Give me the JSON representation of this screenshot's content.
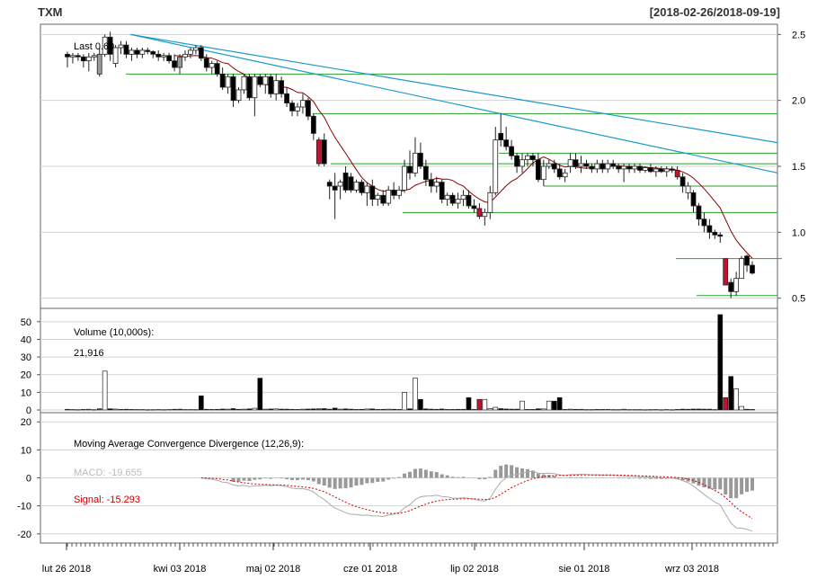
{
  "header": {
    "symbol": "TXM",
    "range": "[2018-02-26/2018-09-19]"
  },
  "colors": {
    "up": "#ffffff",
    "down": "#000000",
    "bigdown": "#c8102e",
    "gray": "#999999",
    "ma": "#8b0000",
    "trend": "#1a9bc9",
    "level": "#2ca02c",
    "grid": "#d3d3d3",
    "macd": "#aaaaaa",
    "signal": "#cc0000"
  },
  "chart_data": {
    "type": "candlestick",
    "x_axis": {
      "labels": [
        "lut 26 2018",
        "kwi 03 2018",
        "maj 02 2018",
        "cze 01 2018",
        "lip 02 2018",
        "sie 01 2018",
        "wrz 03 2018"
      ]
    },
    "price_panel": {
      "last_label": "Last 0.69",
      "ylim": [
        0.45,
        2.55
      ],
      "yticks": [
        "0.5",
        "1.0",
        "1.5",
        "2.0",
        "2.5"
      ],
      "horizontal_levels": [
        {
          "y": 2.2,
          "from": 140,
          "to": 865
        },
        {
          "y": 1.9,
          "from": 348,
          "to": 865
        },
        {
          "y": 1.6,
          "from": 555,
          "to": 865
        },
        {
          "y": 1.52,
          "from": 368,
          "to": 865
        },
        {
          "y": 1.35,
          "from": 605,
          "to": 865
        },
        {
          "y": 1.15,
          "from": 448,
          "to": 865
        },
        {
          "y": 0.8,
          "from": 752,
          "to": 870
        },
        {
          "y": 0.52,
          "from": 775,
          "to": 865
        }
      ],
      "trendlines": [
        {
          "from": {
            "x": 145,
            "y": 2.5
          },
          "to": {
            "x": 865,
            "y": 1.68
          }
        },
        {
          "from": {
            "x": 145,
            "y": 2.5
          },
          "to": {
            "x": 865,
            "y": 1.45
          }
        }
      ],
      "candles": [
        [
          2.35,
          2.37,
          2.25,
          2.33,
          0
        ],
        [
          2.33,
          2.36,
          2.28,
          2.34,
          0
        ],
        [
          2.34,
          2.36,
          2.3,
          2.33,
          0
        ],
        [
          2.33,
          2.35,
          2.25,
          2.3,
          0
        ],
        [
          2.3,
          2.36,
          2.22,
          2.33,
          0
        ],
        [
          2.33,
          2.36,
          2.3,
          2.34,
          0
        ],
        [
          2.2,
          2.4,
          2.18,
          2.35,
          2
        ],
        [
          2.35,
          2.5,
          2.33,
          2.48,
          0
        ],
        [
          2.48,
          2.52,
          2.3,
          2.35,
          0
        ],
        [
          2.28,
          2.42,
          2.25,
          2.4,
          1
        ],
        [
          2.4,
          2.45,
          2.35,
          2.42,
          0
        ],
        [
          2.42,
          2.45,
          2.32,
          2.35,
          0
        ],
        [
          2.35,
          2.4,
          2.3,
          2.38,
          0
        ],
        [
          2.38,
          2.4,
          2.32,
          2.35,
          0
        ],
        [
          2.35,
          2.4,
          2.32,
          2.38,
          0
        ],
        [
          2.38,
          2.4,
          2.35,
          2.37,
          0
        ],
        [
          2.37,
          2.38,
          2.32,
          2.35,
          0
        ],
        [
          2.35,
          2.38,
          2.3,
          2.33,
          0
        ],
        [
          2.33,
          2.36,
          2.3,
          2.34,
          0
        ],
        [
          2.34,
          2.36,
          2.28,
          2.3,
          0
        ],
        [
          2.3,
          2.35,
          2.22,
          2.25,
          0
        ],
        [
          2.25,
          2.35,
          2.2,
          2.33,
          2
        ],
        [
          2.33,
          2.38,
          2.3,
          2.35,
          0
        ],
        [
          2.35,
          2.4,
          2.32,
          2.38,
          0
        ],
        [
          2.38,
          2.42,
          2.35,
          2.4,
          0
        ],
        [
          2.4,
          2.42,
          2.3,
          2.32,
          0
        ],
        [
          2.32,
          2.35,
          2.22,
          2.25,
          0
        ],
        [
          2.25,
          2.3,
          2.2,
          2.28,
          0
        ],
        [
          2.28,
          2.3,
          2.18,
          2.2,
          0
        ],
        [
          2.2,
          2.25,
          2.08,
          2.1,
          0
        ],
        [
          2.1,
          2.2,
          2.05,
          2.18,
          1
        ],
        [
          2.18,
          2.2,
          1.95,
          2.0,
          0
        ],
        [
          2.0,
          2.1,
          1.98,
          2.08,
          1
        ],
        [
          2.08,
          2.2,
          2.05,
          2.18,
          0
        ],
        [
          2.18,
          2.2,
          2.0,
          2.02,
          0
        ],
        [
          2.02,
          2.2,
          1.88,
          2.18,
          0
        ],
        [
          2.18,
          2.2,
          2.1,
          2.12,
          0
        ],
        [
          2.12,
          2.2,
          2.05,
          2.18,
          0
        ],
        [
          2.18,
          2.2,
          2.02,
          2.05,
          0
        ],
        [
          2.05,
          2.2,
          2.0,
          2.15,
          0
        ],
        [
          2.15,
          2.18,
          2.02,
          2.05,
          0
        ],
        [
          2.05,
          2.1,
          1.95,
          1.98,
          0
        ],
        [
          1.98,
          2.0,
          1.88,
          1.92,
          0
        ],
        [
          1.92,
          1.98,
          1.88,
          1.95,
          1
        ],
        [
          1.95,
          2.05,
          1.9,
          2.0,
          0
        ],
        [
          2.0,
          2.02,
          1.85,
          1.88,
          0
        ],
        [
          1.88,
          1.9,
          1.7,
          1.75,
          0
        ],
        [
          1.7,
          1.72,
          1.5,
          1.52,
          2
        ],
        [
          1.7,
          1.75,
          1.5,
          1.52,
          0
        ],
        [
          1.38,
          1.4,
          1.25,
          1.35,
          0
        ],
        [
          1.35,
          1.45,
          1.1,
          1.32,
          0
        ],
        [
          1.35,
          1.4,
          1.25,
          1.38,
          1
        ],
        [
          1.45,
          1.5,
          1.3,
          1.32,
          0
        ],
        [
          1.42,
          1.45,
          1.3,
          1.32,
          0
        ],
        [
          1.32,
          1.4,
          1.3,
          1.38,
          0
        ],
        [
          1.38,
          1.4,
          1.28,
          1.3,
          0
        ],
        [
          1.3,
          1.38,
          1.2,
          1.35,
          1
        ],
        [
          1.35,
          1.4,
          1.2,
          1.25,
          0
        ],
        [
          1.25,
          1.3,
          1.2,
          1.28,
          0
        ],
        [
          1.28,
          1.32,
          1.2,
          1.22,
          0
        ],
        [
          1.22,
          1.35,
          1.2,
          1.32,
          1
        ],
        [
          1.32,
          1.38,
          1.25,
          1.28,
          0
        ],
        [
          1.28,
          1.35,
          1.25,
          1.32,
          0
        ],
        [
          1.32,
          1.55,
          1.3,
          1.5,
          0
        ],
        [
          1.5,
          1.62,
          1.4,
          1.45,
          0
        ],
        [
          1.45,
          1.72,
          1.42,
          1.6,
          1
        ],
        [
          1.6,
          1.68,
          1.48,
          1.5,
          0
        ],
        [
          1.5,
          1.55,
          1.35,
          1.4,
          0
        ],
        [
          1.4,
          1.45,
          1.3,
          1.35,
          0
        ],
        [
          1.35,
          1.42,
          1.3,
          1.38,
          0
        ],
        [
          1.38,
          1.4,
          1.22,
          1.25,
          0
        ],
        [
          1.25,
          1.3,
          1.2,
          1.28,
          1
        ],
        [
          1.28,
          1.3,
          1.2,
          1.22,
          0
        ],
        [
          1.22,
          1.3,
          1.18,
          1.25,
          1
        ],
        [
          1.25,
          1.32,
          1.2,
          1.28,
          0
        ],
        [
          1.28,
          1.32,
          1.18,
          1.2,
          0
        ],
        [
          1.2,
          1.25,
          1.15,
          1.18,
          0
        ],
        [
          1.18,
          1.22,
          1.1,
          1.12,
          2
        ],
        [
          1.12,
          1.18,
          1.05,
          1.15,
          1
        ],
        [
          1.15,
          1.35,
          1.1,
          1.3,
          1
        ],
        [
          1.3,
          1.8,
          1.28,
          1.7,
          1
        ],
        [
          1.75,
          1.9,
          1.65,
          1.7,
          0
        ],
        [
          1.7,
          1.8,
          1.62,
          1.65,
          0
        ],
        [
          1.65,
          1.7,
          1.55,
          1.58,
          0
        ],
        [
          1.58,
          1.6,
          1.45,
          1.5,
          0
        ],
        [
          1.5,
          1.6,
          1.45,
          1.55,
          1
        ],
        [
          1.55,
          1.6,
          1.5,
          1.58,
          0
        ],
        [
          1.58,
          1.6,
          1.5,
          1.55,
          0
        ],
        [
          1.55,
          1.6,
          1.38,
          1.4,
          0
        ],
        [
          1.4,
          1.55,
          1.35,
          1.5,
          1
        ],
        [
          1.5,
          1.55,
          1.48,
          1.52,
          0
        ],
        [
          1.52,
          1.55,
          1.45,
          1.48,
          0
        ],
        [
          1.48,
          1.52,
          1.4,
          1.42,
          0
        ],
        [
          1.42,
          1.48,
          1.38,
          1.45,
          1
        ],
        [
          1.5,
          1.6,
          1.45,
          1.55,
          0
        ],
        [
          1.55,
          1.6,
          1.48,
          1.5,
          0
        ],
        [
          1.5,
          1.58,
          1.45,
          1.52,
          0
        ],
        [
          1.52,
          1.55,
          1.48,
          1.5,
          0
        ],
        [
          1.5,
          1.52,
          1.45,
          1.48,
          0
        ],
        [
          1.48,
          1.55,
          1.45,
          1.52,
          1
        ],
        [
          1.52,
          1.55,
          1.45,
          1.48,
          0
        ],
        [
          1.48,
          1.55,
          1.45,
          1.52,
          1
        ],
        [
          1.52,
          1.55,
          1.48,
          1.5,
          0
        ],
        [
          1.5,
          1.52,
          1.45,
          1.48,
          0
        ],
        [
          1.48,
          1.52,
          1.38,
          1.5,
          1
        ],
        [
          1.5,
          1.52,
          1.45,
          1.48,
          0
        ],
        [
          1.48,
          1.52,
          1.45,
          1.5,
          1
        ],
        [
          1.5,
          1.52,
          1.45,
          1.47,
          0
        ],
        [
          1.47,
          1.5,
          1.45,
          1.49,
          1
        ],
        [
          1.49,
          1.52,
          1.45,
          1.46,
          0
        ],
        [
          1.46,
          1.5,
          1.42,
          1.48,
          1
        ],
        [
          1.48,
          1.5,
          1.45,
          1.46,
          0
        ],
        [
          1.46,
          1.5,
          1.42,
          1.48,
          1
        ],
        [
          1.48,
          1.5,
          1.45,
          1.47,
          0
        ],
        [
          1.47,
          1.5,
          1.4,
          1.42,
          2
        ],
        [
          1.42,
          1.45,
          1.3,
          1.35,
          0
        ],
        [
          1.35,
          1.38,
          1.25,
          1.3,
          1
        ],
        [
          1.3,
          1.32,
          1.15,
          1.2,
          0
        ],
        [
          1.2,
          1.22,
          1.05,
          1.1,
          0
        ],
        [
          1.1,
          1.15,
          1.0,
          1.05,
          0
        ],
        [
          1.05,
          1.1,
          0.95,
          1.0,
          0
        ],
        [
          1.0,
          1.02,
          0.95,
          0.98,
          0
        ],
        [
          0.98,
          1.0,
          0.92,
          0.97,
          0
        ],
        [
          0.8,
          0.8,
          0.6,
          0.6,
          2
        ],
        [
          0.62,
          0.65,
          0.5,
          0.55,
          0
        ],
        [
          0.55,
          0.7,
          0.52,
          0.65,
          1
        ],
        [
          0.65,
          0.82,
          0.65,
          0.8,
          1
        ],
        [
          0.82,
          0.83,
          0.7,
          0.75,
          0
        ],
        [
          0.75,
          0.78,
          0.68,
          0.69,
          0
        ]
      ]
    },
    "volume_panel": {
      "title": "Volume (10,000s):",
      "last": "21,916",
      "ylim": [
        0,
        55
      ],
      "yticks": [
        "0",
        "10",
        "20",
        "30",
        "40",
        "50"
      ]
    },
    "macd_panel": {
      "title": "Moving Average Convergence Divergence (12,26,9):",
      "macd_label": "MACD: -19.655",
      "signal_label": "Signal: -15.293",
      "ylim": [
        -22,
        22
      ],
      "yticks": [
        "-20",
        "-10",
        "0",
        "10",
        "20"
      ]
    }
  }
}
